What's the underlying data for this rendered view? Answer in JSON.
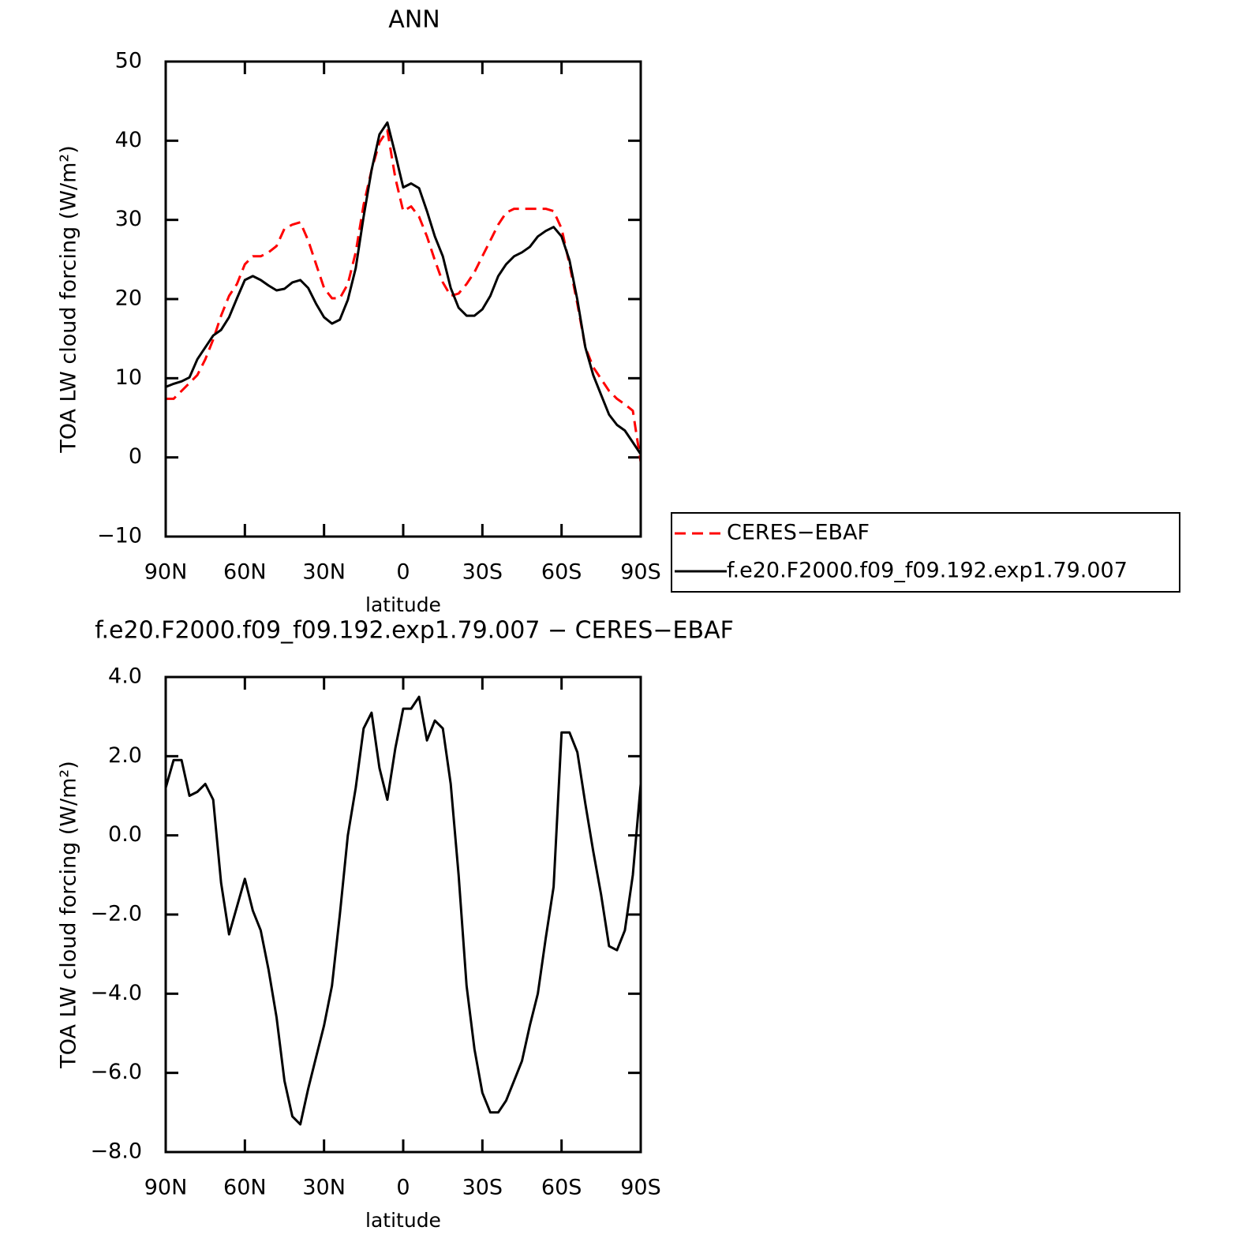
{
  "chart_data": [
    {
      "type": "line",
      "title": "ANN",
      "x_label": "latitude",
      "y_label": "TOA LW cloud forcing (W/m²)",
      "x": [
        90,
        87,
        84,
        81,
        78,
        75,
        72,
        69,
        66,
        63,
        60,
        57,
        54,
        51,
        48,
        45,
        42,
        39,
        36,
        33,
        30,
        27,
        24,
        21,
        18,
        15,
        12,
        9,
        6,
        3,
        0,
        -3,
        -6,
        -9,
        -12,
        -15,
        -18,
        -21,
        -24,
        -27,
        -30,
        -33,
        -36,
        -39,
        -42,
        -45,
        -48,
        -51,
        -54,
        -57,
        -60,
        -63,
        -66,
        -69,
        -72,
        -75,
        -78,
        -81,
        -84,
        -87,
        -90
      ],
      "series": [
        {
          "name": "CERES−EBAF",
          "color": "#ff0000",
          "line_style": "dashed",
          "values": [
            7.4,
            7.4,
            8.4,
            9.4,
            10.4,
            12.4,
            14.9,
            17.9,
            20.4,
            21.9,
            24.4,
            25.4,
            25.4,
            25.9,
            26.7,
            28.9,
            29.4,
            29.7,
            27.4,
            24.4,
            21.4,
            20.1,
            20.1,
            21.9,
            25.9,
            31.9,
            36.3,
            39.8,
            41.3,
            35.3,
            31.1,
            31.7,
            30.4,
            27.9,
            24.9,
            22.1,
            20.4,
            20.7,
            21.9,
            23.4,
            25.4,
            27.4,
            29.4,
            30.9,
            31.4,
            31.4,
            31.4,
            31.4,
            31.4,
            31.1,
            28.9,
            24.4,
            19.4,
            13.9,
            11.4,
            9.9,
            8.4,
            7.4,
            6.7,
            5.9,
            -0.6
          ]
        },
        {
          "name": "f.e20.F2000.f09_f09.192.exp1.79.007",
          "color": "#000000",
          "line_style": "solid",
          "values": [
            8.9,
            9.3,
            9.6,
            10.1,
            12.4,
            13.9,
            15.4,
            16.1,
            17.7,
            20.1,
            22.4,
            22.9,
            22.4,
            21.7,
            21.1,
            21.3,
            22.1,
            22.4,
            21.4,
            19.4,
            17.7,
            16.9,
            17.4,
            19.9,
            23.9,
            30.4,
            36.3,
            40.8,
            42.3,
            38.3,
            34.1,
            34.6,
            34.0,
            31.1,
            27.9,
            25.4,
            21.4,
            18.9,
            17.9,
            17.9,
            18.7,
            20.4,
            22.9,
            24.4,
            25.4,
            25.9,
            26.6,
            27.9,
            28.6,
            29.1,
            27.9,
            24.9,
            19.9,
            13.9,
            10.4,
            7.9,
            5.4,
            4.1,
            3.4,
            1.9,
            0.4
          ]
        }
      ],
      "xlim": [
        90,
        -90
      ],
      "xticks": [
        {
          "value": 90,
          "label": "90N"
        },
        {
          "value": 60,
          "label": "60N"
        },
        {
          "value": 30,
          "label": "30N"
        },
        0,
        {
          "value": -30,
          "label": "30S"
        },
        {
          "value": -60,
          "label": "60S"
        },
        {
          "value": -90,
          "label": "90S"
        }
      ],
      "ylim": [
        -10,
        50
      ],
      "yticks": [
        {
          "value": -10,
          "label": "−10"
        },
        0,
        10,
        20,
        30,
        40,
        50
      ],
      "legend": "right"
    },
    {
      "type": "line",
      "title": "f.e20.F2000.f09_f09.192.exp1.79.007 − CERES−EBAF",
      "x_label": "latitude",
      "y_label": "TOA LW cloud forcing (W/m²)",
      "x": [
        90,
        87,
        84,
        81,
        78,
        75,
        72,
        69,
        66,
        63,
        60,
        57,
        54,
        51,
        48,
        45,
        42,
        39,
        36,
        33,
        30,
        27,
        24,
        21,
        18,
        15,
        12,
        9,
        6,
        3,
        0,
        -3,
        -6,
        -9,
        -12,
        -15,
        -18,
        -21,
        -24,
        -27,
        -30,
        -33,
        -36,
        -39,
        -42,
        -45,
        -48,
        -51,
        -54,
        -57,
        -60,
        -63,
        -66,
        -69,
        -72,
        -75,
        -78,
        -81,
        -84,
        -87,
        -90
      ],
      "series": [
        {
          "color": "#000000",
          "line_style": "solid",
          "values": [
            1.2,
            1.9,
            1.9,
            1.0,
            1.1,
            1.3,
            0.9,
            -1.2,
            -2.5,
            -1.8,
            -1.1,
            -1.9,
            -2.4,
            -3.4,
            -4.6,
            -6.2,
            -7.1,
            -7.3,
            -6.4,
            -5.6,
            -4.8,
            -3.8,
            -2.0,
            0.0,
            1.2,
            2.7,
            3.1,
            1.7,
            0.9,
            2.2,
            3.2,
            3.2,
            3.5,
            2.4,
            2.9,
            2.7,
            1.3,
            -1.0,
            -3.8,
            -5.4,
            -6.5,
            -7.0,
            -7.0,
            -6.7,
            -6.2,
            -5.7,
            -4.8,
            -4.0,
            -2.6,
            -1.3,
            2.6,
            2.6,
            2.1,
            0.8,
            -0.4,
            -1.5,
            -2.8,
            -2.9,
            -2.4,
            -1.0,
            1.3
          ]
        }
      ],
      "xlim": [
        90,
        -90
      ],
      "xticks": [
        {
          "value": 90,
          "label": "90N"
        },
        {
          "value": 60,
          "label": "60N"
        },
        {
          "value": 30,
          "label": "30N"
        },
        0,
        {
          "value": -30,
          "label": "30S"
        },
        {
          "value": -60,
          "label": "60S"
        },
        {
          "value": -90,
          "label": "90S"
        }
      ],
      "ylim": [
        -8,
        4
      ],
      "yticks": [
        {
          "value": -8,
          "label": "−8.0"
        },
        {
          "value": -6,
          "label": "−6.0"
        },
        {
          "value": -4,
          "label": "−4.0"
        },
        {
          "value": -2,
          "label": "−2.0"
        },
        {
          "value": 0,
          "label": "0.0"
        },
        {
          "value": 2,
          "label": "2.0"
        },
        {
          "value": 4,
          "label": "4.0"
        }
      ]
    }
  ]
}
